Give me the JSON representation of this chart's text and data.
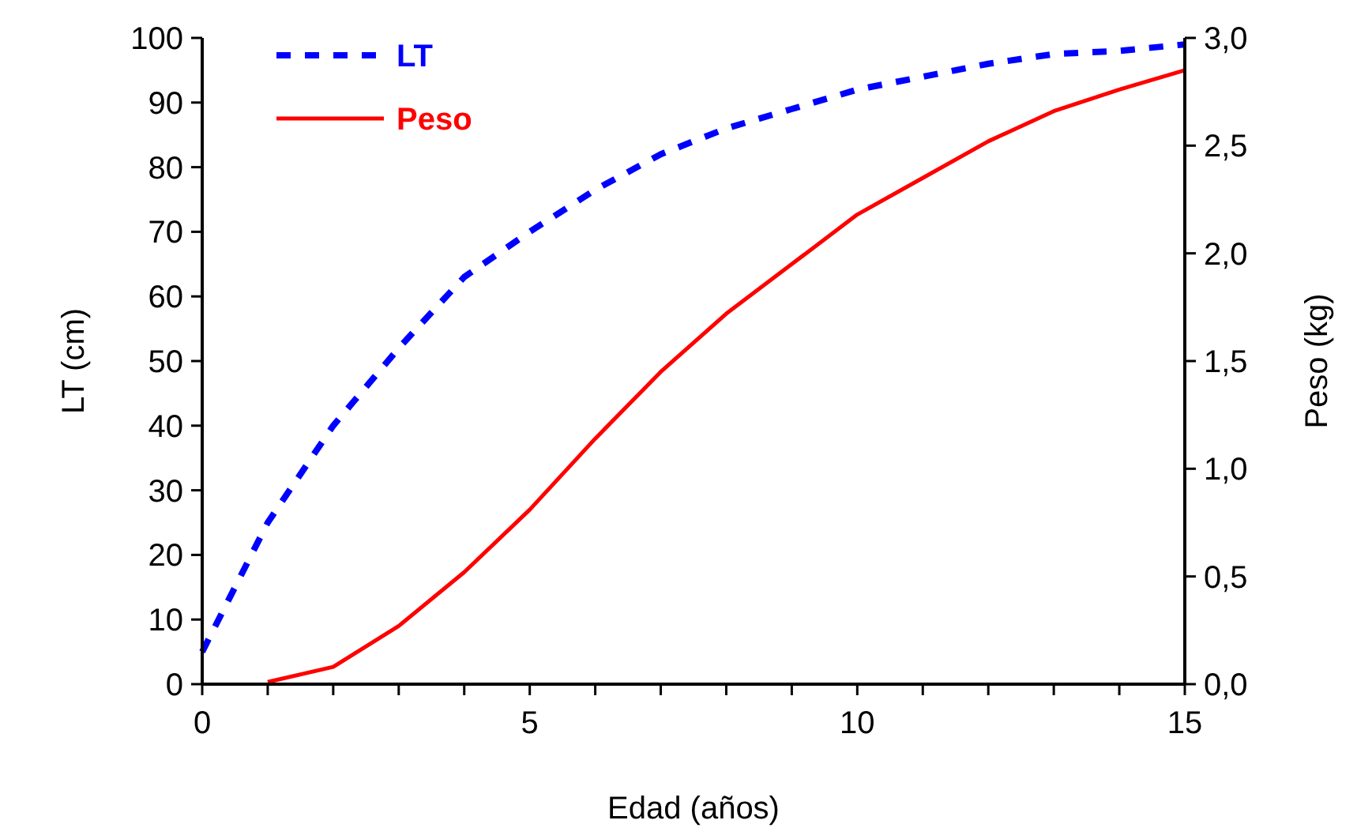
{
  "chart_data": {
    "type": "line",
    "xlabel": "Edad (años)",
    "ylabel": "LT (cm)",
    "y2label": "Peso (kg)",
    "xlim": [
      0,
      15
    ],
    "xticks": [
      0,
      {
        "value": 1,
        "label": null
      },
      {
        "value": 2,
        "label": null
      },
      {
        "value": 3,
        "label": null
      },
      {
        "value": 4,
        "label": null
      },
      5,
      {
        "value": 6,
        "label": null
      },
      {
        "value": 7,
        "label": null
      },
      {
        "value": 8,
        "label": null
      },
      {
        "value": 9,
        "label": null
      },
      10,
      {
        "value": 11,
        "label": null
      },
      {
        "value": 12,
        "label": null
      },
      {
        "value": 13,
        "label": null
      },
      {
        "value": 14,
        "label": null
      },
      15
    ],
    "ylim": [
      0,
      100
    ],
    "yticks": [
      0,
      10,
      20,
      30,
      40,
      50,
      60,
      70,
      80,
      90,
      100
    ],
    "y2lim": [
      0,
      3
    ],
    "y2ticks": [
      {
        "value": 0,
        "label": "0,0"
      },
      {
        "value": 0.5,
        "label": "0,5"
      },
      {
        "value": 1,
        "label": "1,0"
      },
      {
        "value": 1.5,
        "label": "1,5"
      },
      {
        "value": 2,
        "label": "2,0"
      },
      {
        "value": 2.5,
        "label": "2,5"
      },
      {
        "value": 3,
        "label": "3,0"
      }
    ],
    "legend": "top left",
    "grid": false,
    "marker": "none",
    "series": [
      {
        "name": "LT",
        "color": "#0000ff",
        "line_style": "dashed",
        "x": [
          0,
          1,
          2,
          3,
          4,
          5,
          6,
          7,
          8,
          9,
          10,
          11,
          12,
          13,
          14,
          15
        ],
        "values": [
          5,
          25,
          40,
          52,
          63,
          70,
          76.5,
          82,
          86,
          89,
          92,
          94,
          96,
          97.5,
          98,
          99
        ]
      },
      {
        "name": "Peso",
        "color": "#ff0000",
        "line_style": "solid",
        "axis": "y2",
        "x": [
          1,
          2,
          3,
          4,
          5,
          6,
          7,
          8,
          9,
          10,
          11,
          12,
          13,
          14,
          15
        ],
        "values": [
          0.01,
          0.08,
          0.27,
          0.52,
          0.81,
          1.14,
          1.45,
          1.72,
          1.95,
          2.18,
          2.35,
          2.52,
          2.66,
          2.76,
          2.85
        ]
      }
    ]
  }
}
